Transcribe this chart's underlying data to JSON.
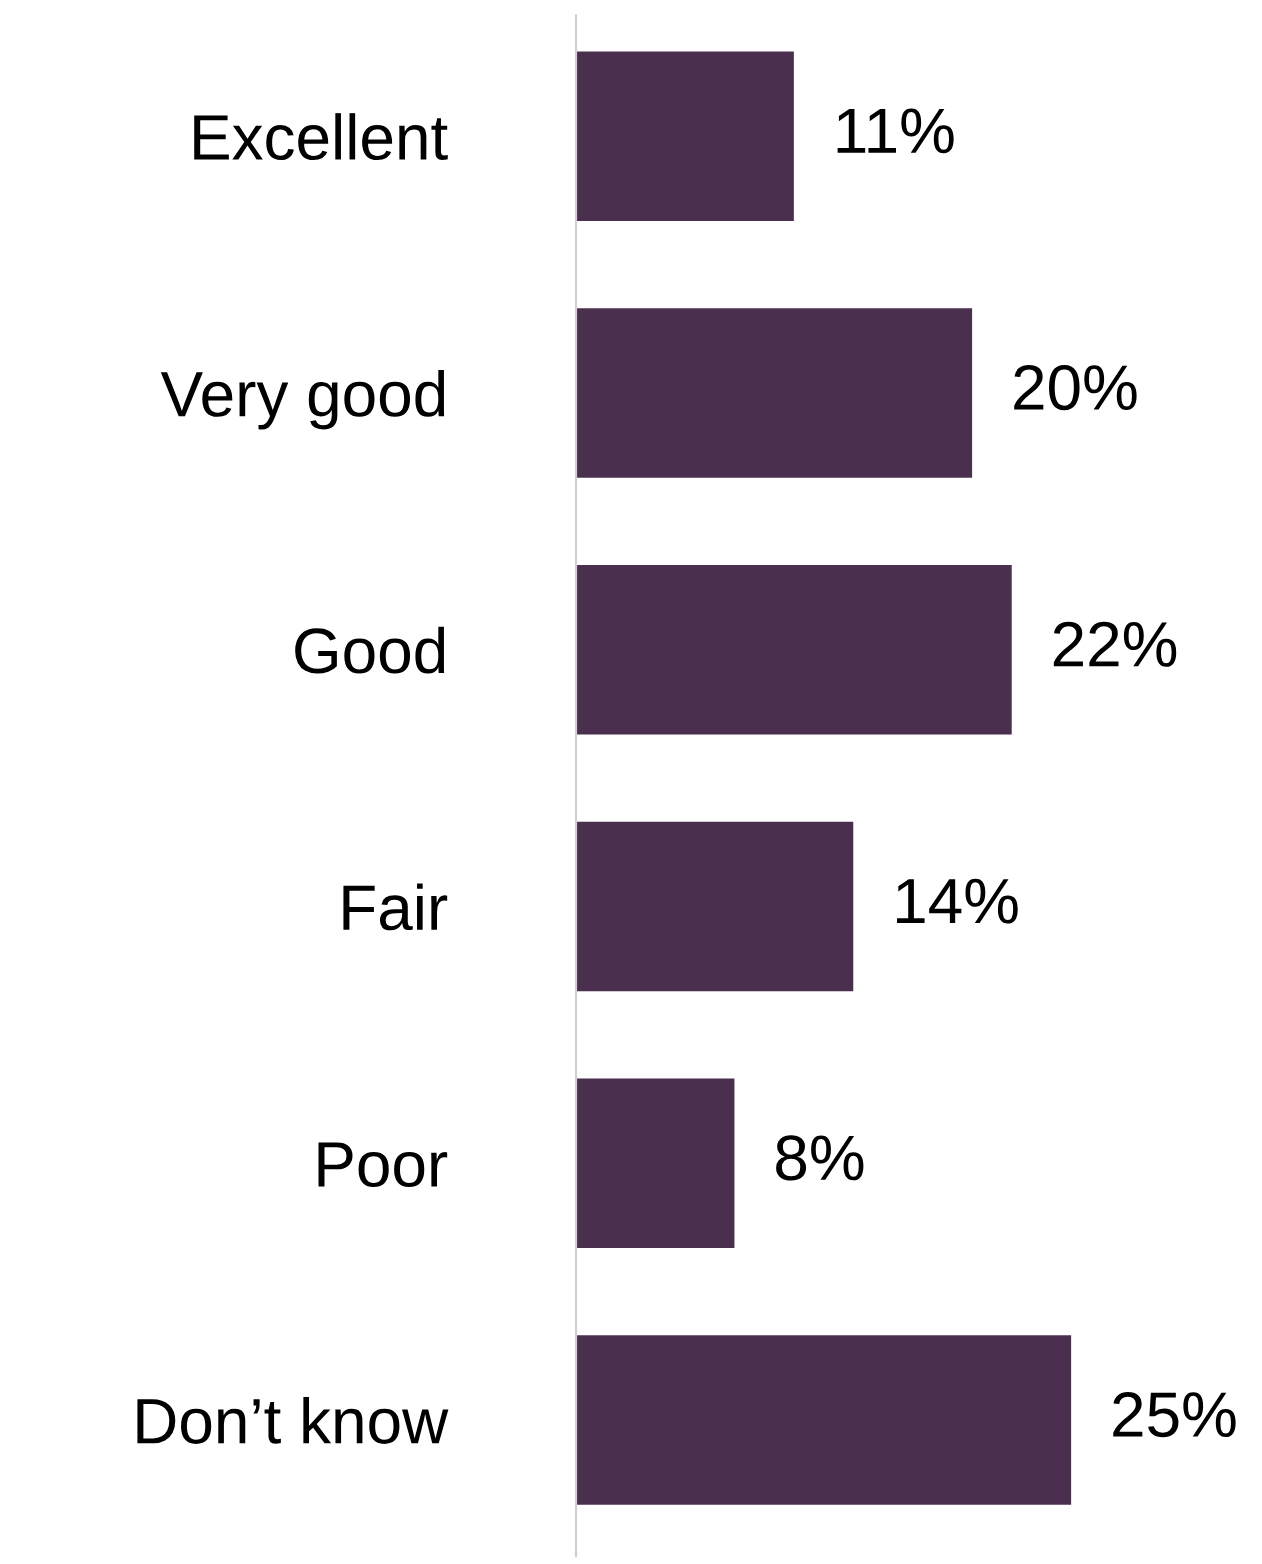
{
  "chart_data": {
    "type": "bar",
    "orientation": "horizontal",
    "categories": [
      "Excellent",
      "Very good",
      "Good",
      "Fair",
      "Poor",
      "Don’t know"
    ],
    "values": [
      11,
      20,
      22,
      14,
      8,
      25
    ],
    "value_labels": [
      "11%",
      "20%",
      "22%",
      "14%",
      "8%",
      "25%"
    ],
    "color": "#4b2f4e",
    "grid": false,
    "legend": false
  }
}
